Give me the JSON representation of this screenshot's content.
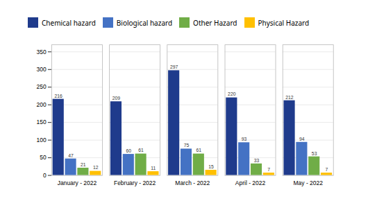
{
  "chart_data": {
    "type": "bar",
    "categories": [
      "January - 2022",
      "February - 2022",
      "March - 2022",
      "April - 2022",
      "May - 2022"
    ],
    "series": [
      {
        "name": "Chemical hazard",
        "color": "#1F3B8C",
        "values": [
          216,
          209,
          297,
          220,
          212
        ]
      },
      {
        "name": "Biological hazard",
        "color": "#4472C4",
        "values": [
          47,
          60,
          75,
          93,
          94
        ]
      },
      {
        "name": "Other Hazard",
        "color": "#70AD47",
        "values": [
          21,
          61,
          61,
          33,
          53
        ]
      },
      {
        "name": "Physical Hazard",
        "color": "#FFC000",
        "values": [
          12,
          11,
          15,
          7,
          7
        ]
      }
    ],
    "ylim": [
      0,
      370
    ],
    "yticks": [
      0,
      50,
      100,
      150,
      200,
      250,
      300,
      350
    ],
    "grid": true,
    "legend": "top",
    "data_labels": true
  }
}
